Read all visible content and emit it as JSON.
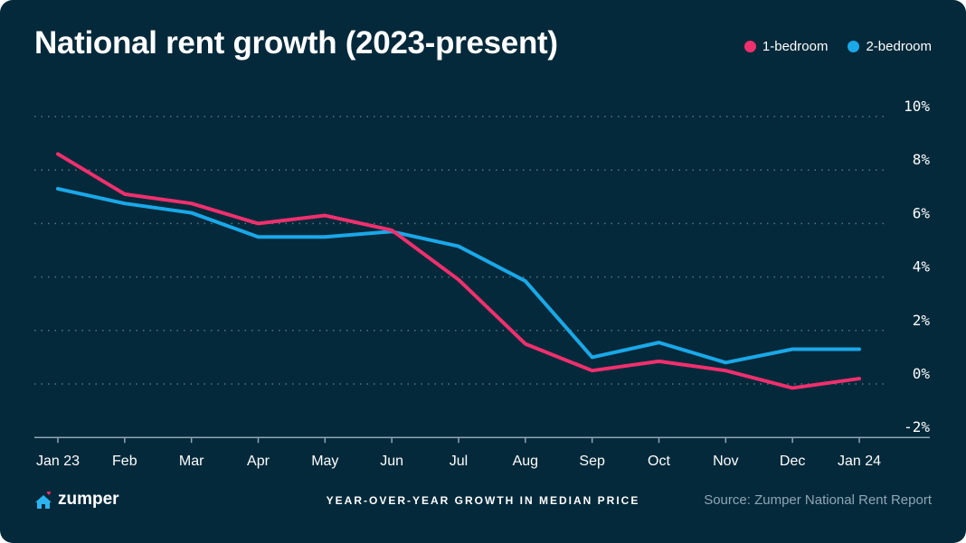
{
  "colors": {
    "background": "#03293a",
    "one_bed": "#f0306e",
    "two_bed": "#1aa8e8",
    "grid": "#5a7482"
  },
  "brand": {
    "name": "zumper",
    "icon": "house-heart-icon"
  },
  "footer": {
    "caption": "YEAR-OVER-YEAR GROWTH IN MEDIAN PRICE",
    "source": "Source: Zumper National Rent Report"
  },
  "chart_data": {
    "type": "line",
    "title": "National rent growth (2023-present)",
    "xlabel": "",
    "ylabel": "",
    "categories": [
      "Jan 23",
      "Feb",
      "Mar",
      "Apr",
      "May",
      "Jun",
      "Jul",
      "Aug",
      "Sep",
      "Oct",
      "Nov",
      "Dec",
      "Jan 24"
    ],
    "ylim": [
      -2,
      10
    ],
    "yticks": [
      -2,
      0,
      2,
      4,
      6,
      8,
      10
    ],
    "ytick_labels": [
      "-2%",
      "0%",
      "2%",
      "4%",
      "6%",
      "8%",
      "10%"
    ],
    "grid": true,
    "legend_position": "top-right",
    "series": [
      {
        "name": "1-bedroom",
        "color": "#f0306e",
        "values": [
          8.6,
          7.1,
          6.75,
          6.0,
          6.3,
          5.75,
          3.9,
          1.5,
          0.5,
          0.85,
          0.5,
          -0.15,
          0.2
        ]
      },
      {
        "name": "2-bedroom",
        "color": "#1aa8e8",
        "values": [
          7.3,
          6.75,
          6.4,
          5.5,
          5.5,
          5.7,
          5.15,
          3.85,
          1.0,
          1.55,
          0.8,
          1.3,
          1.3
        ]
      }
    ]
  }
}
